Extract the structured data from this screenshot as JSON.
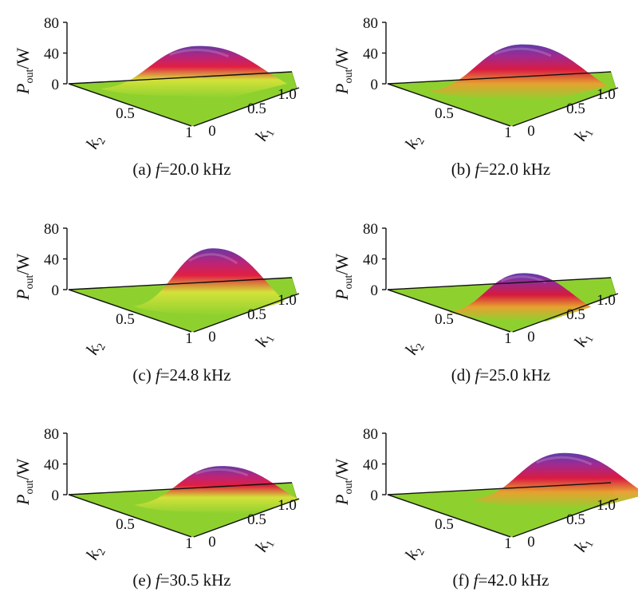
{
  "chart_data": [
    {
      "type": "surface",
      "caption": "(a) f=20.0 kHz",
      "caption_prefix": "(a) ",
      "caption_var": "f",
      "caption_value": "=20.0 kHz",
      "zlabel_main": "P",
      "zlabel_sub": "out",
      "zlabel_unit": "/W",
      "xlabel_main": "k",
      "xlabel_sub": "1",
      "ylabel_main": "k",
      "ylabel_sub": "2",
      "z_ticks": [
        "80",
        "40",
        "0"
      ],
      "k1_ticks": [
        "0",
        "0.5",
        "1.0"
      ],
      "k2_ticks": [
        "0.5",
        "1"
      ],
      "zlim": [
        0,
        80
      ],
      "k1_range": [
        0,
        1
      ],
      "k2_range": [
        0,
        1
      ],
      "peak": {
        "k1": 0.55,
        "k2": 0.12,
        "p_out": 45
      }
    },
    {
      "type": "surface",
      "caption": "(b) f=22.0 kHz",
      "caption_prefix": "(b) ",
      "caption_var": "f",
      "caption_value": "=22.0 kHz",
      "zlabel_main": "P",
      "zlabel_sub": "out",
      "zlabel_unit": "/W",
      "xlabel_main": "k",
      "xlabel_sub": "1",
      "ylabel_main": "k",
      "ylabel_sub": "2",
      "z_ticks": [
        "80",
        "40",
        "0"
      ],
      "k1_ticks": [
        "0",
        "0.5",
        "1.0"
      ],
      "k2_ticks": [
        "0.5",
        "1"
      ],
      "zlim": [
        0,
        80
      ],
      "k1_range": [
        0,
        1
      ],
      "k2_range": [
        0,
        1
      ],
      "peak": {
        "k1": 0.55,
        "k2": 0.2,
        "p_out": 50
      }
    },
    {
      "type": "surface",
      "caption": "(c) f=24.8 kHz",
      "caption_prefix": "(c) ",
      "caption_var": "f",
      "caption_value": "=24.8 kHz",
      "zlabel_main": "P",
      "zlabel_sub": "out",
      "zlabel_unit": "/W",
      "xlabel_main": "k",
      "xlabel_sub": "1",
      "ylabel_main": "k",
      "ylabel_sub": "2",
      "z_ticks": [
        "80",
        "40",
        "0"
      ],
      "k1_ticks": [
        "0",
        "0.5",
        "1.0"
      ],
      "k2_ticks": [
        "0.5",
        "1"
      ],
      "zlim": [
        0,
        80
      ],
      "k1_range": [
        0,
        1
      ],
      "k2_range": [
        0,
        1
      ],
      "peak": {
        "k1": 0.5,
        "k2": 0.5,
        "p_out": 65
      }
    },
    {
      "type": "surface",
      "caption": "(d) f=25.0 kHz",
      "caption_prefix": "(d) ",
      "caption_var": "f",
      "caption_value": "=25.0 kHz",
      "zlabel_main": "P",
      "zlabel_sub": "out",
      "zlabel_unit": "/W",
      "xlabel_main": "k",
      "xlabel_sub": "1",
      "ylabel_main": "k",
      "ylabel_sub": "2",
      "z_ticks": [
        "80",
        "40",
        "0"
      ],
      "k1_ticks": [
        "0",
        "0.5",
        "1.0"
      ],
      "k2_ticks": [
        "0.5",
        "1"
      ],
      "zlim": [
        0,
        80
      ],
      "k1_range": [
        0,
        1
      ],
      "k2_range": [
        0,
        1
      ],
      "peak": {
        "k1": 0.4,
        "k2": 0.6,
        "p_out": 40
      }
    },
    {
      "type": "surface",
      "caption": "(e) f=30.5 kHz",
      "caption_prefix": "(e) ",
      "caption_var": "f",
      "caption_value": "=30.5 kHz",
      "zlabel_main": "P",
      "zlabel_sub": "out",
      "zlabel_unit": "/W",
      "xlabel_main": "k",
      "xlabel_sub": "1",
      "ylabel_main": "k",
      "ylabel_sub": "2",
      "z_ticks": [
        "80",
        "40",
        "0"
      ],
      "k1_ticks": [
        "0",
        "0.5",
        "1.0"
      ],
      "k2_ticks": [
        "0.5",
        "1"
      ],
      "zlim": [
        0,
        80
      ],
      "k1_range": [
        0,
        1
      ],
      "k2_range": [
        0,
        1
      ],
      "peak": {
        "k1": 0.6,
        "k2": 0.35,
        "p_out": 40
      }
    },
    {
      "type": "surface",
      "caption": "(f) f=42.0 kHz",
      "caption_prefix": "(f) ",
      "caption_var": "f",
      "caption_value": "=42.0 kHz",
      "zlabel_main": "P",
      "zlabel_sub": "out",
      "zlabel_unit": "/W",
      "xlabel_main": "k",
      "xlabel_sub": "1",
      "ylabel_main": "k",
      "ylabel_sub": "2",
      "z_ticks": [
        "80",
        "40",
        "0"
      ],
      "k1_ticks": [
        "0",
        "0.5",
        "1.0"
      ],
      "k2_ticks": [
        "0.5",
        "1"
      ],
      "zlim": [
        0,
        80
      ],
      "k1_range": [
        0,
        1
      ],
      "k2_range": [
        0,
        1
      ],
      "peak": {
        "k1": 0.75,
        "k2": 0.25,
        "p_out": 50
      }
    }
  ],
  "colors": {
    "surface_low": "#8ed12f",
    "surface_mid_yellow": "#e8e838",
    "surface_red": "#d8143c",
    "surface_magenta": "#b41e7a",
    "surface_peak": "#6432a0",
    "axis": "#111111"
  }
}
